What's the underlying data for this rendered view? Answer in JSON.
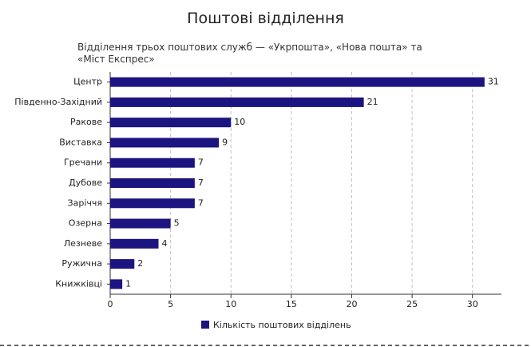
{
  "chart_data": {
    "type": "barh",
    "title": "Поштові відділення",
    "subtitle": "Відділення трьох поштових служб — «Укрпошта», «Нова пошта» та «Міст Експрес»",
    "categories": [
      "Центр",
      "Південно-Західний",
      "Ракове",
      "Виставка",
      "Гречани",
      "Дубове",
      "Заріччя",
      "Озерна",
      "Лезневе",
      "Ружична",
      "Книжківці"
    ],
    "series": [
      {
        "name": "Кількість поштових відділень",
        "color": "#1c1480",
        "values": [
          31,
          21,
          10,
          9,
          7,
          7,
          7,
          5,
          4,
          2,
          1
        ]
      }
    ],
    "xlim": [
      0,
      32.4
    ],
    "xticks": [
      0,
      5,
      10,
      15,
      20,
      25,
      30
    ],
    "grid": true,
    "legend": "bottom"
  }
}
